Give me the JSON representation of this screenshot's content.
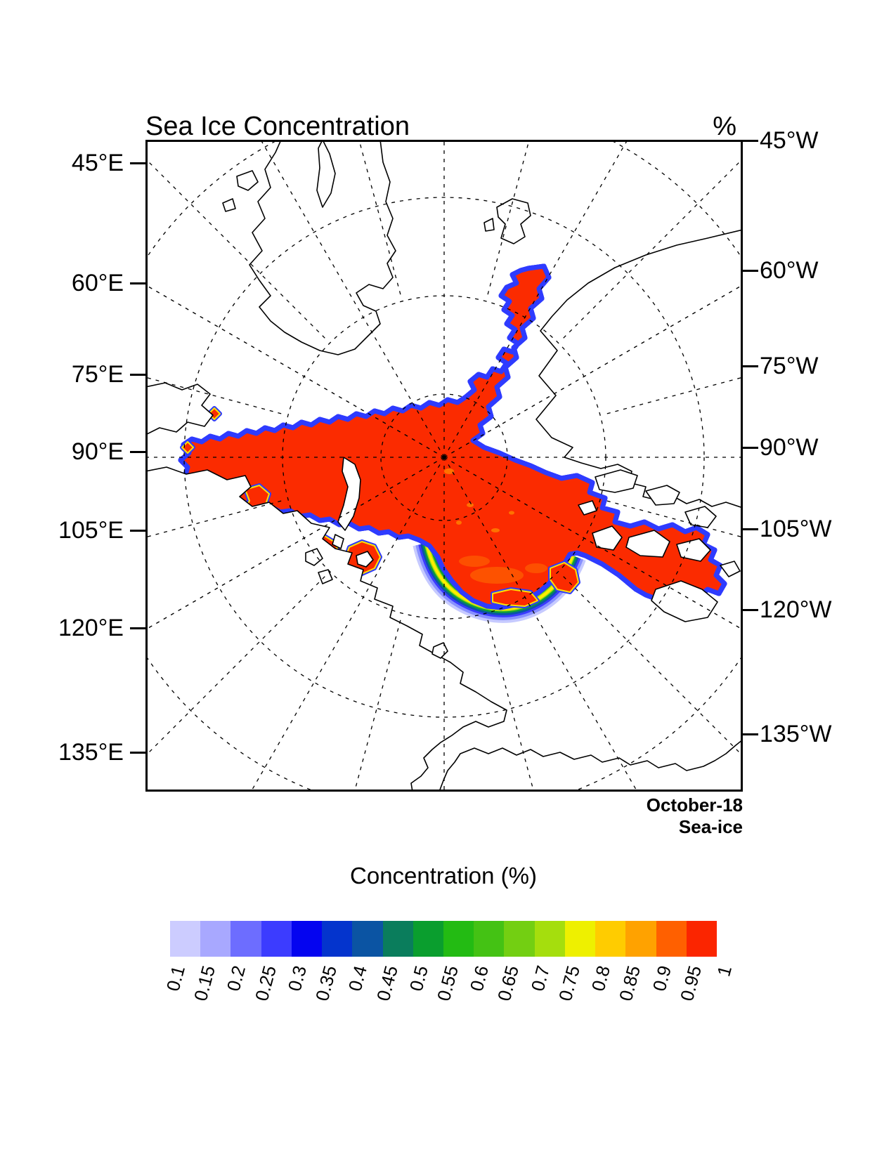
{
  "header": {
    "title": "Sea Ice Concentration",
    "unit_label": "%"
  },
  "axes": {
    "left": [
      "45°E",
      "60°E",
      "75°E",
      "90°E",
      "105°E",
      "120°E",
      "135°E"
    ],
    "right": [
      "45°W",
      "60°W",
      "75°W",
      "90°W",
      "105°W",
      "120°W",
      "135°W"
    ]
  },
  "annotation": {
    "line1": "October-18",
    "line2": "Sea-ice"
  },
  "colorbar": {
    "title": "Concentration (%)",
    "tick_labels": [
      "0.1",
      "0.15",
      "0.2",
      "0.25",
      "0.3",
      "0.35",
      "0.4",
      "0.45",
      "0.5",
      "0.55",
      "0.6",
      "0.65",
      "0.7",
      "0.75",
      "0.8",
      "0.85",
      "0.9",
      "0.95",
      "1"
    ],
    "colors": [
      "#ccccff",
      "#a8a8ff",
      "#6d6dff",
      "#3c3cff",
      "#0404f0",
      "#0434cd",
      "#0b54a3",
      "#0a7d5c",
      "#0a9e2e",
      "#23bb13",
      "#44c214",
      "#73cf12",
      "#a5de0d",
      "#eef000",
      "#ffcc00",
      "#ffa200",
      "#ff6000",
      "#fb2500"
    ]
  },
  "map": {
    "ice_fill": "#fb2b00",
    "fringe_yellow": "#ffe000",
    "fringe_green": "#12a52e",
    "fringe_blue": "#2e3bff",
    "land_fill": "#ffffff",
    "coast_color": "#000000"
  },
  "chart_data": {
    "type": "heatmap",
    "subtype": "filled-contour-map",
    "title": "Sea Ice Concentration",
    "units": "%",
    "colorbar_title": "Concentration (%)",
    "levels": [
      0.1,
      0.15,
      0.2,
      0.25,
      0.3,
      0.35,
      0.4,
      0.45,
      0.5,
      0.55,
      0.6,
      0.65,
      0.7,
      0.75,
      0.8,
      0.85,
      0.9,
      0.95,
      1
    ],
    "palette": [
      "#ccccff",
      "#a8a8ff",
      "#6d6dff",
      "#3c3cff",
      "#0404f0",
      "#0434cd",
      "#0b54a3",
      "#0a7d5c",
      "#0a9e2e",
      "#23bb13",
      "#44c214",
      "#73cf12",
      "#a5de0d",
      "#eef000",
      "#ffcc00",
      "#ffa200",
      "#ff6000",
      "#fb2500"
    ],
    "projection": "north-polar-stereographic",
    "longitude_labels_left": [
      "45°E",
      "60°E",
      "75°E",
      "90°E",
      "105°E",
      "120°E",
      "135°E"
    ],
    "longitude_labels_right": [
      "45°W",
      "60°W",
      "75°W",
      "90°W",
      "105°W",
      "120°W",
      "135°W"
    ],
    "annotation": [
      "October-18",
      "Sea-ice"
    ],
    "description": "Central Arctic ice pack at >0.95 concentration (red) covering the pole, with a tongue extending through Fram Strait along NE Greenland; marginal ice zone gradient (yellow-green-blue, 0.1-0.9) along the Beaufort/Chukchi sea edge; high-concentration ice filling Canadian Arctic Archipelago channels and scattered patches along the Siberian coast; dashed latitude circles and meridians; coastlines drawn as black outlines on white."
  }
}
